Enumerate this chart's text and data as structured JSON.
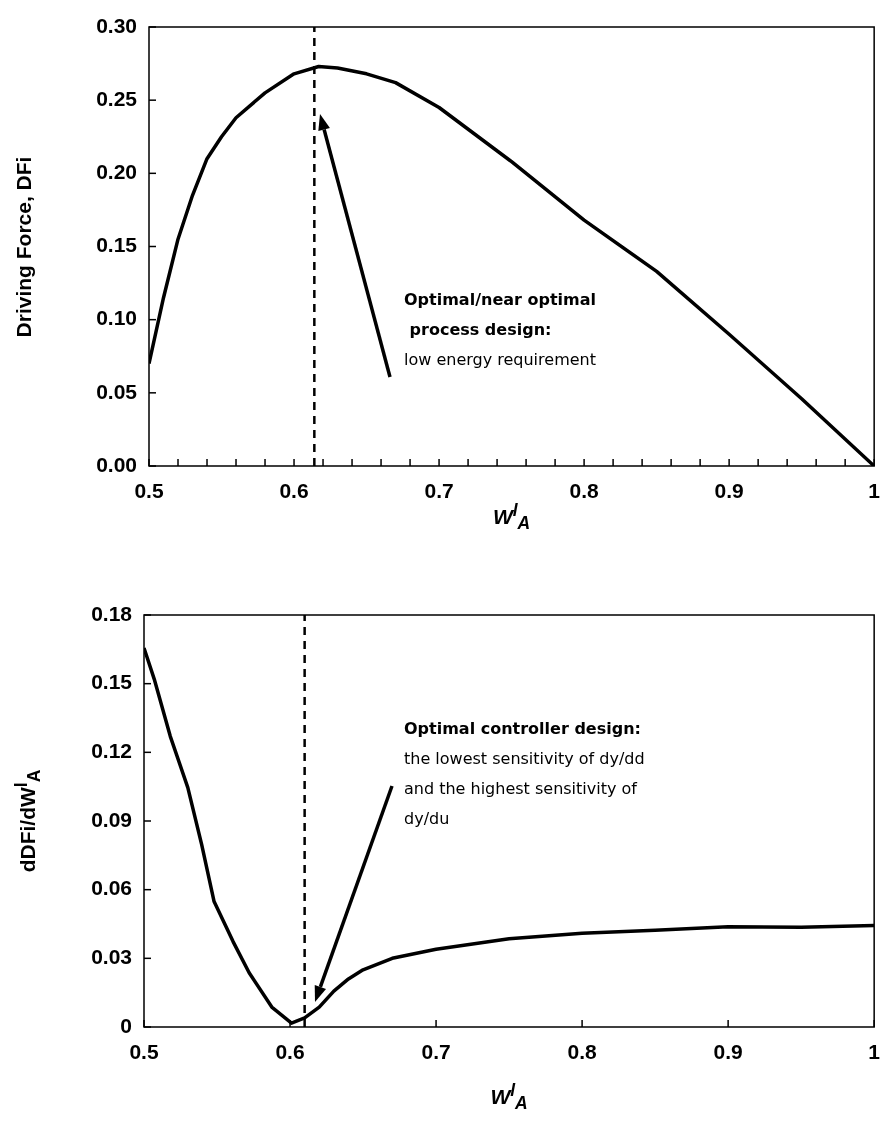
{
  "chart_data": [
    {
      "type": "line",
      "xlabel": "W$^{l}$$_{A}$",
      "ylabel": "Driving Force, DFi",
      "series": [
        {
          "color": "#000000",
          "x": [
            0.5,
            0.51,
            0.52,
            0.53,
            0.54,
            0.55,
            0.56,
            0.58,
            0.6,
            0.617,
            0.63,
            0.65,
            0.67,
            0.7,
            0.75,
            0.8,
            0.85,
            0.9,
            0.95,
            1
          ],
          "values": [
            0.07,
            0.115,
            0.155,
            0.185,
            0.21,
            0.225,
            0.238,
            0.255,
            0.268,
            0.273,
            0.272,
            0.268,
            0.262,
            0.245,
            0.208,
            0.168,
            0.133,
            0.09,
            0.046,
            0
          ]
        }
      ],
      "xlim": [
        0.5,
        1
      ],
      "xticks": [
        0.5,
        {
          "value": 0.52,
          "label": null
        },
        {
          "value": 0.54,
          "label": null
        },
        {
          "value": 0.56,
          "label": null
        },
        {
          "value": 0.58,
          "label": null
        },
        0.6,
        {
          "value": 0.62,
          "label": null
        },
        {
          "value": 0.64,
          "label": null
        },
        {
          "value": 0.66,
          "label": null
        },
        {
          "value": 0.68,
          "label": null
        },
        0.7,
        {
          "value": 0.72,
          "label": null
        },
        {
          "value": 0.74,
          "label": null
        },
        {
          "value": 0.76,
          "label": null
        },
        {
          "value": 0.78,
          "label": null
        },
        0.8,
        {
          "value": 0.82,
          "label": null
        },
        {
          "value": 0.84,
          "label": null
        },
        {
          "value": 0.86,
          "label": null
        },
        {
          "value": 0.88,
          "label": null
        },
        0.9,
        {
          "value": 0.92,
          "label": null
        },
        {
          "value": 0.94,
          "label": null
        },
        {
          "value": 0.96,
          "label": null
        },
        {
          "value": 0.98,
          "label": null
        },
        1
      ],
      "ylim": [
        0,
        0.3
      ],
      "yticks": [
        {
          "value": 0,
          "label": "0.00"
        },
        0.05,
        {
          "value": 0.1,
          "label": "0.10"
        },
        0.15,
        {
          "value": 0.2,
          "label": "0.20"
        },
        0.25,
        {
          "value": 0.3,
          "label": "0.30"
        }
      ],
      "ref_lines": [
        {
          "axis": "x",
          "value": 0.614,
          "line_style": "dashed",
          "color": "#000000"
        }
      ],
      "annotations": [
        "Optimal/near optimal\n process design:\nlow energy requirement"
      ],
      "marker": "none",
      "line_style": "solid",
      "legend": false,
      "grid": false
    },
    {
      "type": "line",
      "xlabel": "W$^{l}$$_{A}$",
      "ylabel": "dDFi/dW$^{l}$$_{A}$",
      "series": [
        {
          "color": "#000000",
          "x": [
            0.5,
            0.507,
            0.518,
            0.53,
            0.5395,
            0.548,
            0.561,
            0.572,
            0.5875,
            0.601,
            0.61,
            0.62,
            0.63,
            0.64,
            0.65,
            0.67,
            0.7,
            0.75,
            0.8,
            0.85,
            0.9,
            0.95,
            1
          ],
          "values": [
            0.1656,
            0.152,
            0.127,
            0.1046,
            0.0797,
            0.0548,
            0.0373,
            0.0237,
            0.0087,
            0.0017,
            0.004,
            0.0087,
            0.0157,
            0.021,
            0.025,
            0.03,
            0.034,
            0.0386,
            0.041,
            0.0423,
            0.0438,
            0.0436,
            0.0443
          ]
        }
      ],
      "xlim": [
        0.5,
        1
      ],
      "xticks": [
        0.5,
        0.6,
        0.7,
        0.8,
        0.9,
        1
      ],
      "ylim": [
        0,
        0.18
      ],
      "yticks": [
        0,
        0.03,
        0.06,
        0.09,
        0.12,
        0.15,
        0.18
      ],
      "ref_lines": [
        {
          "axis": "x",
          "value": 0.61,
          "line_style": "dashed",
          "color": "#000000"
        }
      ],
      "annotations": [
        "Optimal controller design:\nthe lowest sensitivity of dy/dd\nand the highest sensitivity of\ndy/du"
      ],
      "marker": "none",
      "line_style": "solid",
      "legend": false,
      "grid": false
    }
  ]
}
